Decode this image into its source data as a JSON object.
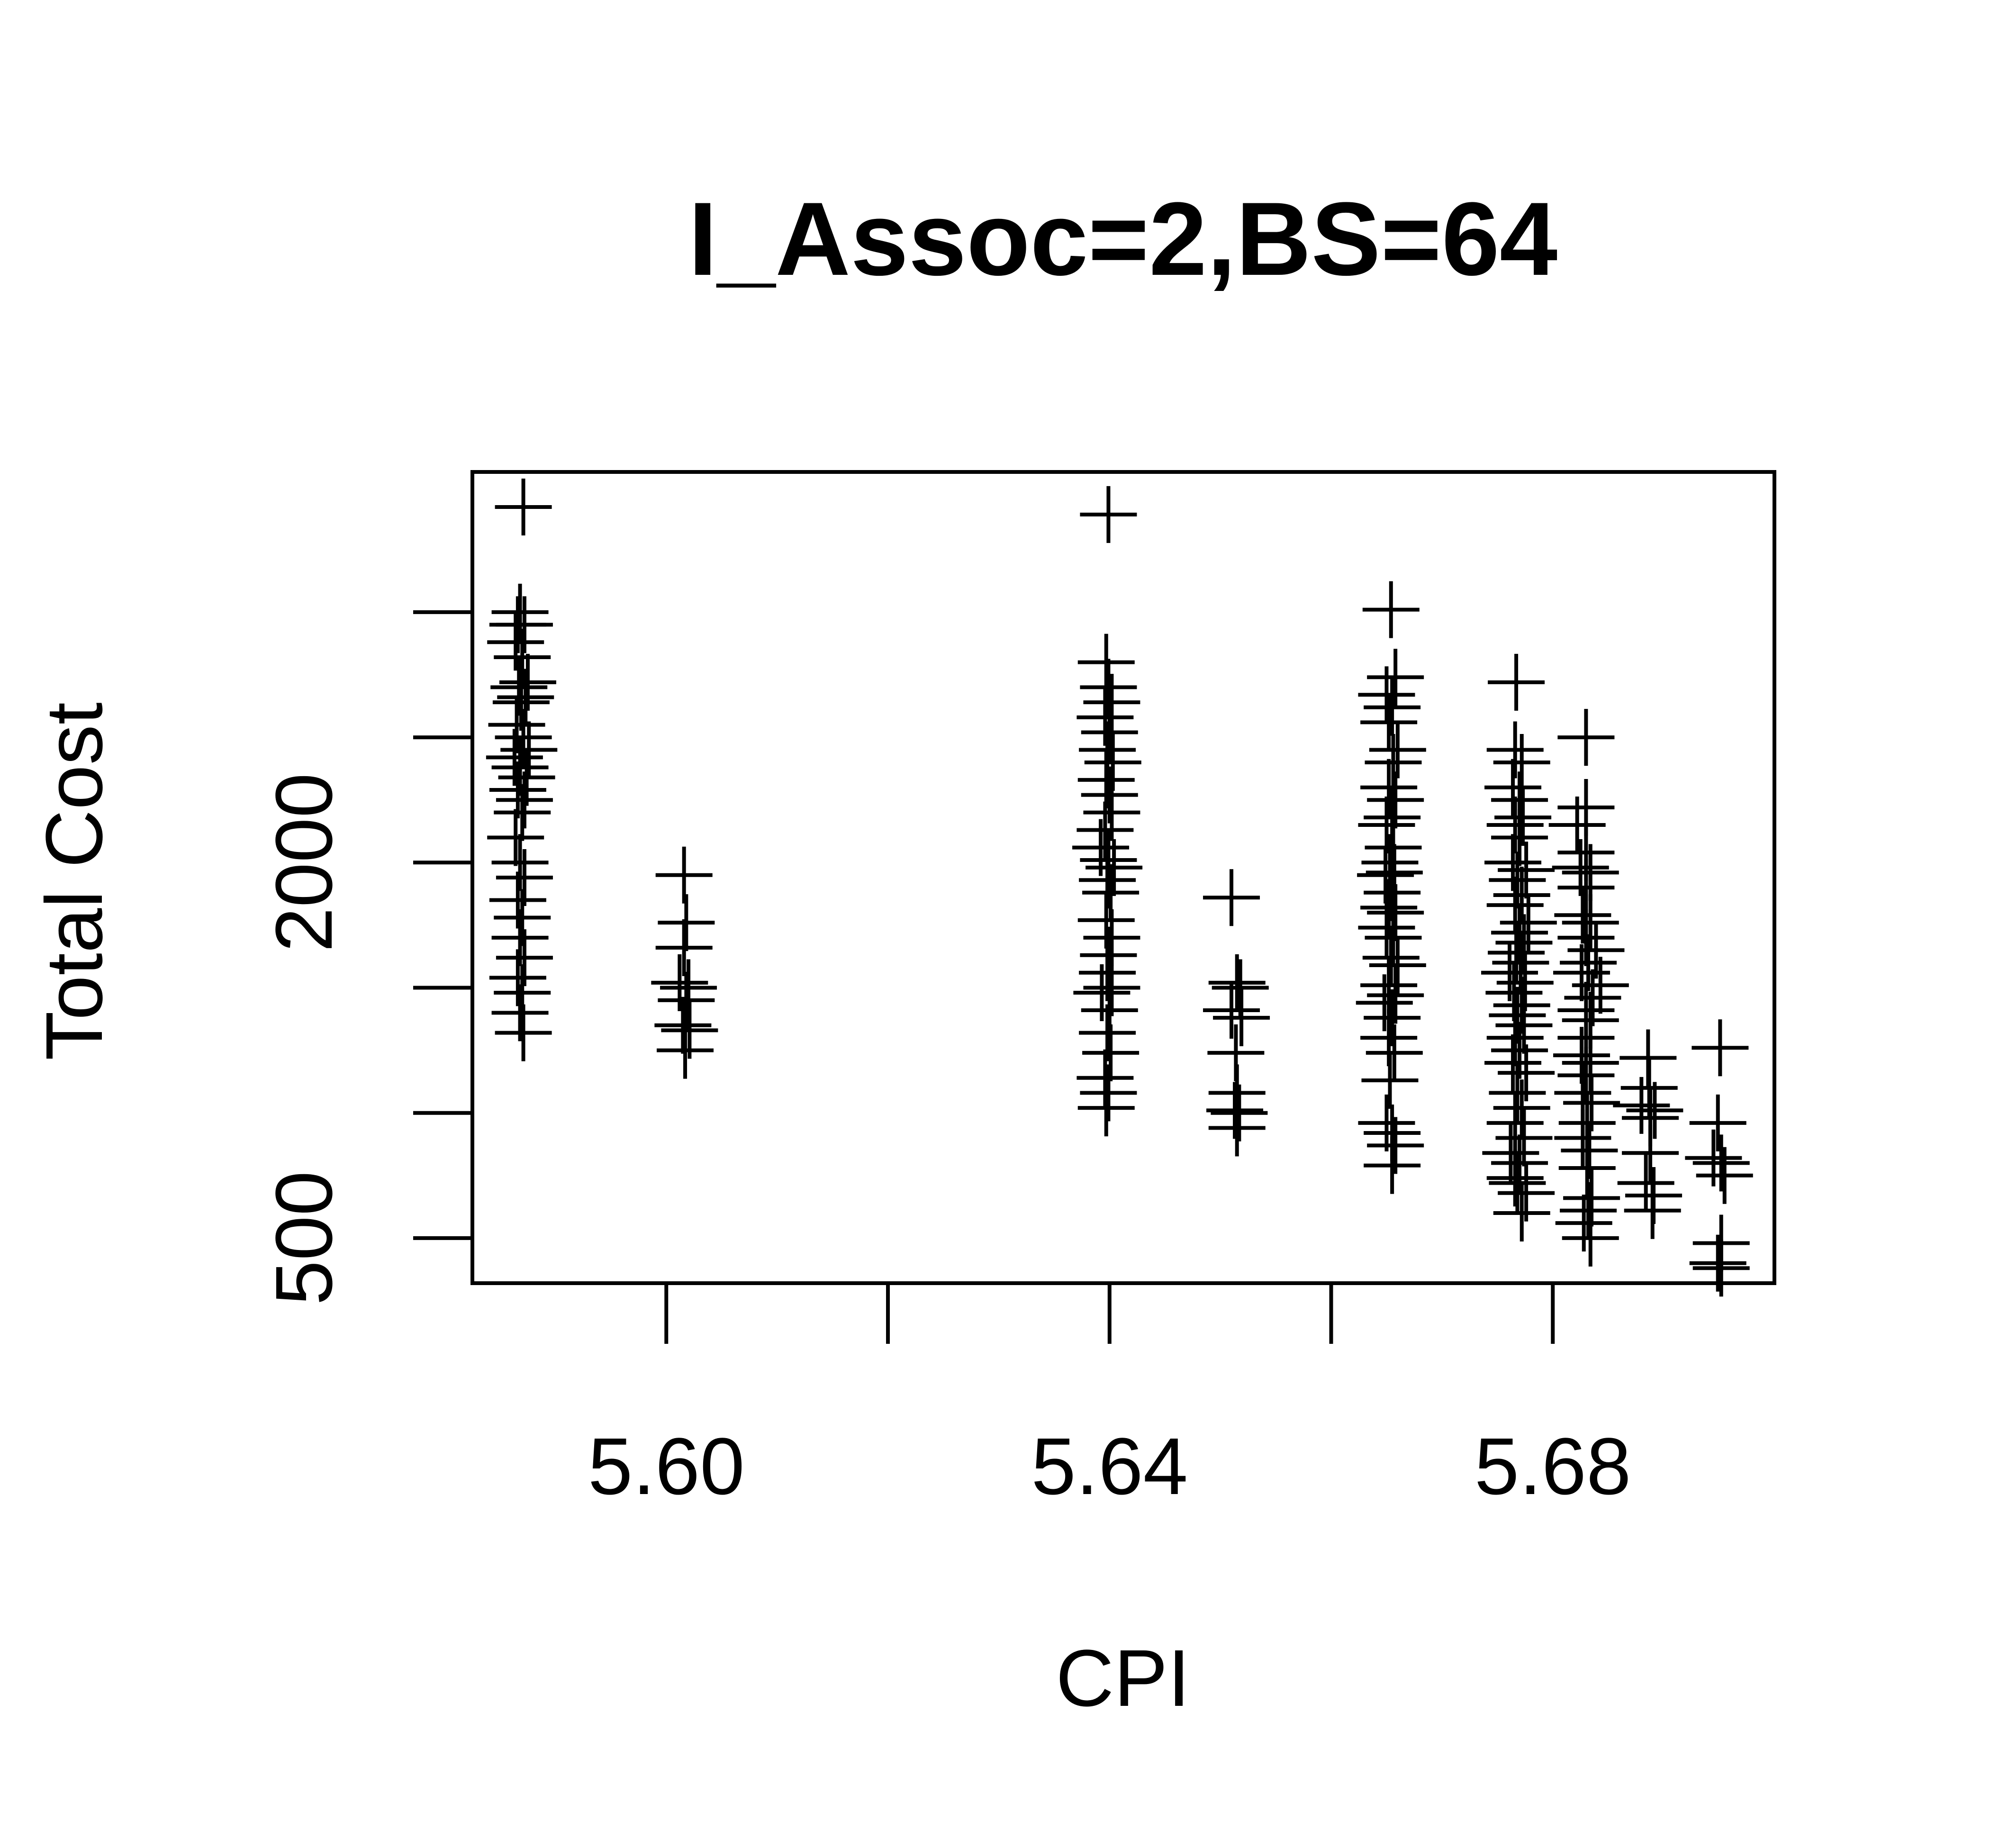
{
  "chart_data": {
    "type": "scatter",
    "title": "I_Assoc=2,BS=64",
    "xlabel": "CPI",
    "ylabel": "Total Cost",
    "xlim": [
      5.5825,
      5.7
    ],
    "ylim": [
      320,
      3560
    ],
    "x_ticks": [
      5.6,
      5.62,
      5.64,
      5.66,
      5.68
    ],
    "x_tick_labels": [
      "5.60",
      "",
      "5.64",
      "",
      "5.68"
    ],
    "y_ticks": [
      500,
      1000,
      1500,
      2000,
      2500,
      3000
    ],
    "y_tick_labels": [
      "500",
      "",
      "",
      "2000",
      "",
      ""
    ],
    "grid": false,
    "legend": "none",
    "marker": "+",
    "color": "#000000",
    "series": [
      {
        "points": [
          [
            5.5871,
            3420
          ],
          [
            5.5868,
            3000
          ],
          [
            5.5866,
            2950
          ],
          [
            5.5872,
            2950
          ],
          [
            5.5864,
            2880
          ],
          [
            5.587,
            2820
          ],
          [
            5.5875,
            2720
          ],
          [
            5.5867,
            2700
          ],
          [
            5.5873,
            2660
          ],
          [
            5.5869,
            2640
          ],
          [
            5.5865,
            2550
          ],
          [
            5.5871,
            2500
          ],
          [
            5.5863,
            2420
          ],
          [
            5.5876,
            2450
          ],
          [
            5.5868,
            2380
          ],
          [
            5.5874,
            2340
          ],
          [
            5.5866,
            2290
          ],
          [
            5.5872,
            2250
          ],
          [
            5.587,
            2200
          ],
          [
            5.5864,
            2100
          ],
          [
            5.5868,
            2000
          ],
          [
            5.5872,
            1940
          ],
          [
            5.5866,
            1850
          ],
          [
            5.587,
            1780
          ],
          [
            5.5868,
            1700
          ],
          [
            5.5872,
            1620
          ],
          [
            5.5866,
            1540
          ],
          [
            5.587,
            1480
          ],
          [
            5.5868,
            1400
          ],
          [
            5.5871,
            1320
          ]
        ]
      },
      {
        "points": [
          [
            5.6016,
            1950
          ],
          [
            5.6018,
            1760
          ],
          [
            5.6016,
            1660
          ],
          [
            5.6012,
            1520
          ],
          [
            5.602,
            1500
          ],
          [
            5.6018,
            1450
          ],
          [
            5.6015,
            1350
          ],
          [
            5.6021,
            1330
          ],
          [
            5.6017,
            1250
          ]
        ]
      },
      {
        "points": [
          [
            5.6399,
            3390
          ],
          [
            5.6397,
            2800
          ],
          [
            5.6399,
            2700
          ],
          [
            5.6402,
            2640
          ],
          [
            5.6396,
            2580
          ],
          [
            5.64,
            2520
          ],
          [
            5.6398,
            2450
          ],
          [
            5.6403,
            2400
          ],
          [
            5.6397,
            2330
          ],
          [
            5.64,
            2270
          ],
          [
            5.6402,
            2200
          ],
          [
            5.6396,
            2130
          ],
          [
            5.6392,
            2060
          ],
          [
            5.6399,
            2010
          ],
          [
            5.6404,
            1980
          ],
          [
            5.6398,
            1930
          ],
          [
            5.6401,
            1880
          ],
          [
            5.6397,
            1770
          ],
          [
            5.6402,
            1700
          ],
          [
            5.6399,
            1630
          ],
          [
            5.6398,
            1560
          ],
          [
            5.6402,
            1500
          ],
          [
            5.6393,
            1480
          ],
          [
            5.64,
            1410
          ],
          [
            5.6398,
            1320
          ],
          [
            5.6401,
            1240
          ],
          [
            5.6396,
            1140
          ],
          [
            5.6399,
            1080
          ],
          [
            5.6397,
            1020
          ]
        ]
      },
      {
        "points": [
          [
            5.651,
            1860
          ],
          [
            5.6515,
            1520
          ],
          [
            5.6518,
            1500
          ],
          [
            5.651,
            1410
          ],
          [
            5.6519,
            1380
          ],
          [
            5.6514,
            1240
          ],
          [
            5.6515,
            1080
          ],
          [
            5.6513,
            1010
          ],
          [
            5.6517,
            1000
          ],
          [
            5.6515,
            940
          ]
        ]
      },
      {
        "points": [
          [
            5.6654,
            3010
          ],
          [
            5.6658,
            2740
          ],
          [
            5.665,
            2670
          ],
          [
            5.6655,
            2620
          ],
          [
            5.6652,
            2560
          ],
          [
            5.666,
            2450
          ],
          [
            5.6656,
            2400
          ],
          [
            5.6652,
            2300
          ],
          [
            5.6658,
            2250
          ],
          [
            5.6655,
            2180
          ],
          [
            5.665,
            2150
          ],
          [
            5.6656,
            2060
          ],
          [
            5.6653,
            2000
          ],
          [
            5.6657,
            1960
          ],
          [
            5.6649,
            1950
          ],
          [
            5.6655,
            1880
          ],
          [
            5.6652,
            1820
          ],
          [
            5.6658,
            1800
          ],
          [
            5.665,
            1740
          ],
          [
            5.6656,
            1700
          ],
          [
            5.6654,
            1620
          ],
          [
            5.666,
            1590
          ],
          [
            5.6652,
            1510
          ],
          [
            5.6658,
            1470
          ],
          [
            5.6648,
            1440
          ],
          [
            5.6655,
            1380
          ],
          [
            5.6652,
            1300
          ],
          [
            5.6657,
            1240
          ],
          [
            5.6653,
            1130
          ],
          [
            5.665,
            960
          ],
          [
            5.6655,
            920
          ],
          [
            5.6658,
            870
          ],
          [
            5.6655,
            790
          ]
        ]
      },
      {
        "points": [
          [
            5.6767,
            2720
          ],
          [
            5.6766,
            2450
          ],
          [
            5.6772,
            2400
          ],
          [
            5.6764,
            2300
          ],
          [
            5.677,
            2250
          ],
          [
            5.6773,
            2180
          ],
          [
            5.6766,
            2150
          ],
          [
            5.677,
            2100
          ],
          [
            5.6764,
            2000
          ],
          [
            5.6776,
            1970
          ],
          [
            5.6768,
            1930
          ],
          [
            5.6772,
            1870
          ],
          [
            5.6766,
            1830
          ],
          [
            5.6778,
            1760
          ],
          [
            5.677,
            1720
          ],
          [
            5.6774,
            1680
          ],
          [
            5.6767,
            1640
          ],
          [
            5.6761,
            1560
          ],
          [
            5.6771,
            1600
          ],
          [
            5.6775,
            1520
          ],
          [
            5.6765,
            1480
          ],
          [
            5.6772,
            1430
          ],
          [
            5.6768,
            1390
          ],
          [
            5.6774,
            1350
          ],
          [
            5.6766,
            1300
          ],
          [
            5.677,
            1250
          ],
          [
            5.6764,
            1200
          ],
          [
            5.6776,
            1160
          ],
          [
            5.6768,
            1080
          ],
          [
            5.6772,
            1020
          ],
          [
            5.6766,
            960
          ],
          [
            5.6774,
            900
          ],
          [
            5.6762,
            840
          ],
          [
            5.677,
            800
          ],
          [
            5.6766,
            740
          ],
          [
            5.6776,
            680
          ],
          [
            5.6772,
            600
          ],
          [
            5.6768,
            720
          ]
        ]
      },
      {
        "points": [
          [
            5.683,
            2500
          ],
          [
            5.683,
            2220
          ],
          [
            5.6822,
            2150
          ],
          [
            5.683,
            2040
          ],
          [
            5.6825,
            1980
          ],
          [
            5.6834,
            1960
          ],
          [
            5.683,
            1900
          ],
          [
            5.6827,
            1790
          ],
          [
            5.6834,
            1760
          ],
          [
            5.683,
            1700
          ],
          [
            5.6839,
            1650
          ],
          [
            5.6832,
            1600
          ],
          [
            5.6826,
            1560
          ],
          [
            5.6843,
            1510
          ],
          [
            5.6836,
            1460
          ],
          [
            5.683,
            1410
          ],
          [
            5.6834,
            1370
          ],
          [
            5.683,
            1300
          ],
          [
            5.6826,
            1230
          ],
          [
            5.6834,
            1200
          ],
          [
            5.683,
            1150
          ],
          [
            5.6827,
            1080
          ],
          [
            5.6835,
            1040
          ],
          [
            5.6831,
            960
          ],
          [
            5.6827,
            900
          ],
          [
            5.6833,
            850
          ],
          [
            5.6831,
            780
          ],
          [
            5.6835,
            660
          ],
          [
            5.6832,
            610
          ],
          [
            5.6828,
            560
          ],
          [
            5.6834,
            500
          ]
        ]
      },
      {
        "points": [
          [
            5.6886,
            1220
          ],
          [
            5.6887,
            1100
          ],
          [
            5.688,
            1030
          ],
          [
            5.6892,
            1010
          ],
          [
            5.6888,
            980
          ],
          [
            5.6888,
            840
          ],
          [
            5.6884,
            720
          ],
          [
            5.6891,
            670
          ],
          [
            5.689,
            610
          ]
        ]
      },
      {
        "points": [
          [
            5.6951,
            1260
          ],
          [
            5.6949,
            960
          ],
          [
            5.6945,
            820
          ],
          [
            5.6952,
            800
          ],
          [
            5.6955,
            750
          ],
          [
            5.6952,
            480
          ],
          [
            5.6949,
            400
          ],
          [
            5.6952,
            380
          ]
        ]
      }
    ]
  }
}
